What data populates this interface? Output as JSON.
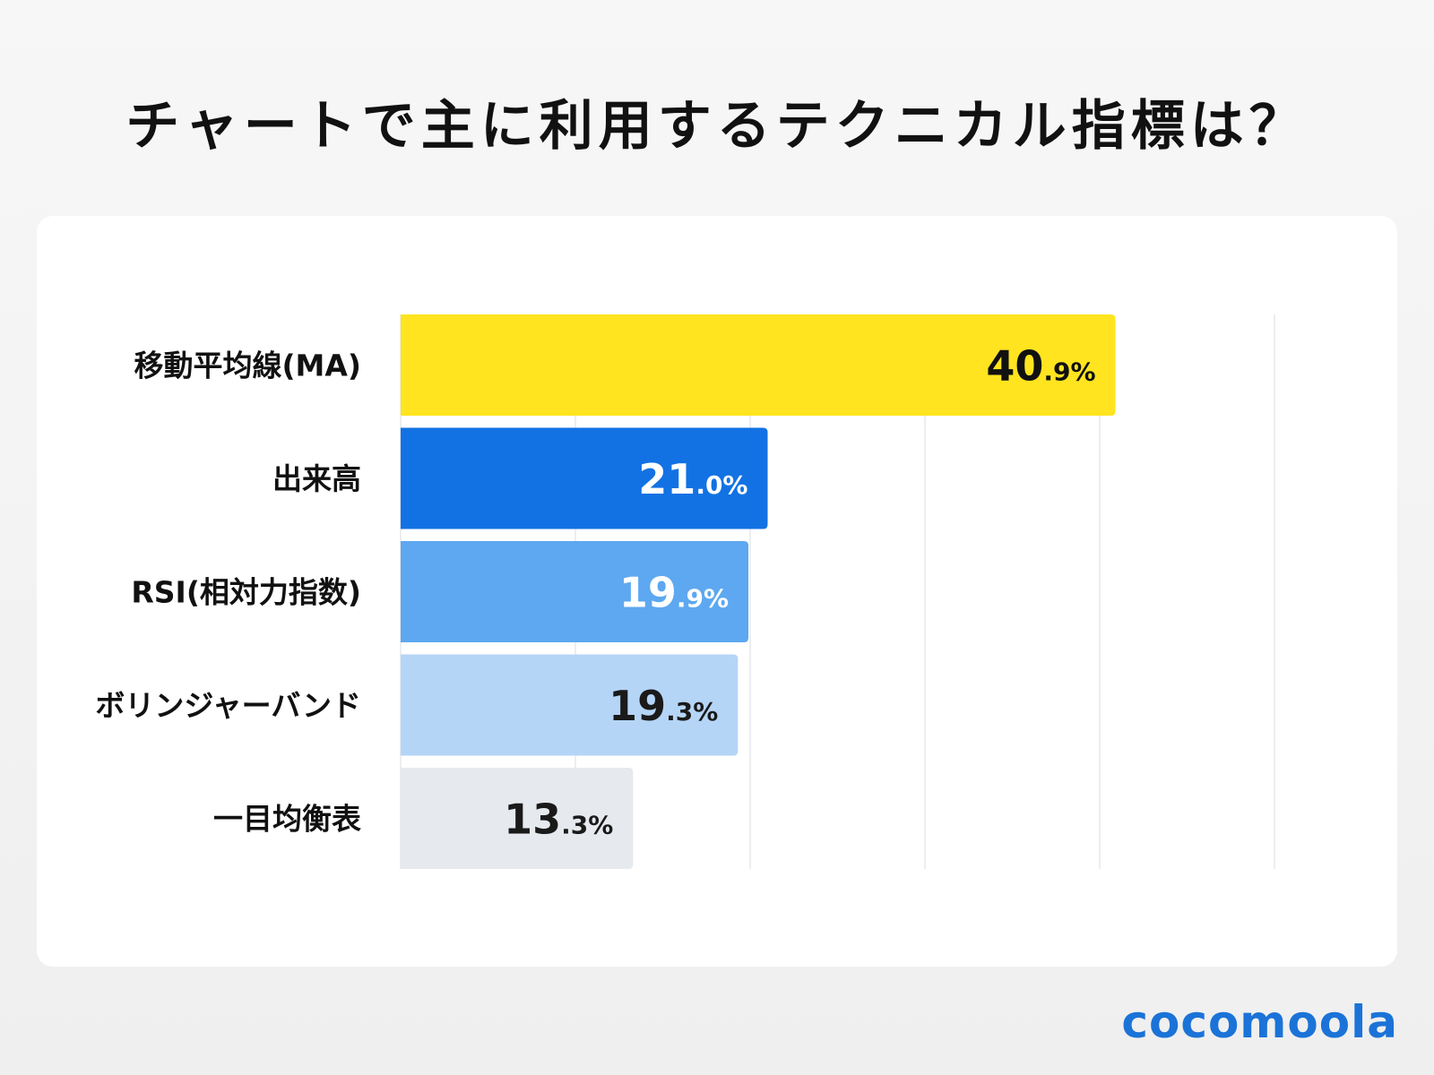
{
  "title": "チャートで主に利用するテクニカル指標は？",
  "brand": "cocomoola",
  "chart_data": {
    "type": "bar",
    "orientation": "horizontal",
    "title": "チャートで主に利用するテクニカル指標は？",
    "categories": [
      "移動平均線(MA)",
      "出来高",
      "RSI(相対力指数)",
      "ボリンジャーバンド",
      "一目均衡表"
    ],
    "values": [
      40.9,
      21.0,
      19.9,
      19.3,
      13.3
    ],
    "value_labels": [
      "40.9%",
      "21.0%",
      "19.9%",
      "19.3%",
      "13.3%"
    ],
    "unit": "%",
    "xlim": [
      0,
      50
    ],
    "grid": true,
    "grid_step": 10,
    "colors": [
      "#FFE41F",
      "#1272E3",
      "#5DA8F0",
      "#B5D5F7",
      "#E6E9EE"
    ],
    "label_colors": [
      "#111111",
      "#ffffff",
      "#ffffff",
      "#1a1a1a",
      "#1a1a1a"
    ]
  }
}
